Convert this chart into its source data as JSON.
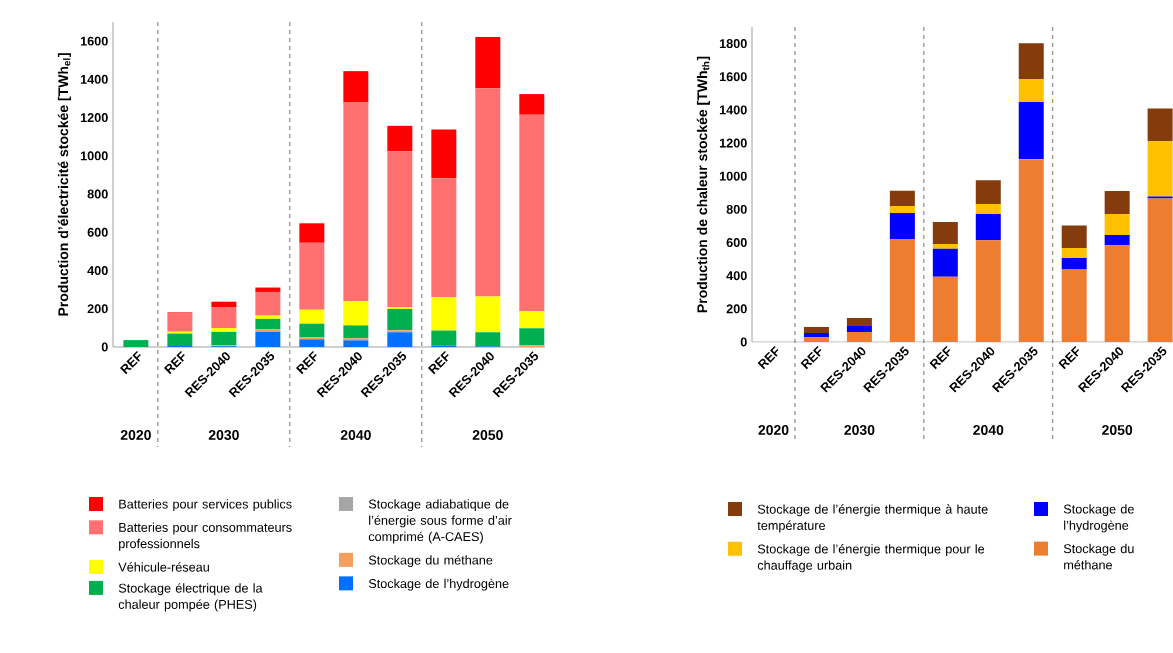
{
  "chart_data": [
    {
      "type": "bar",
      "stacked": true,
      "ylabel": "Production d’électricité stockée [TWh$_{el}$]",
      "categories": [
        "REF",
        "REF",
        "RES-2040",
        "RES-2035",
        "REF",
        "RES-2040",
        "RES-2035",
        "REF",
        "RES-2040",
        "RES-2035"
      ],
      "series": [
        {
          "name": "Stockage de l’hydrogène",
          "color": "#0070ff",
          "values": [
            0,
            5,
            4,
            79,
            40,
            35,
            77,
            8,
            3,
            0
          ]
        },
        {
          "name": "Stockage du méthane",
          "color": "#f4a05a",
          "values": [
            0,
            0,
            4,
            13,
            11,
            10,
            10,
            0,
            0,
            9
          ]
        },
        {
          "name": "Stockage adiabatique de l’énergie sous forme d’air comprimé (A-CAES)",
          "color": "#a6a6a6",
          "values": [
            null,
            0,
            0,
            0,
            0,
            0,
            0,
            0,
            0,
            0
          ]
        },
        {
          "name": "Stockage électrique de la chaleur pompée (PHES)",
          "color": "#00b050",
          "values": [
            36,
            65,
            71,
            55,
            71,
            68,
            112,
            78,
            74,
            89
          ]
        },
        {
          "name": "Véhicule-réseau",
          "color": "#ffff00",
          "values": [
            0,
            10,
            20,
            17,
            73,
            126,
            10,
            174,
            187,
            89
          ]
        },
        {
          "name": "Batteries pour consommateurs professionnels",
          "color": "#ff7171",
          "values": [
            0,
            95,
            110,
            124,
            350,
            1042,
            815,
            623,
            1089,
            1028
          ]
        },
        {
          "name": "Batteries pour services publics",
          "color": "#ff0000",
          "values": [
            0,
            6,
            28,
            23,
            102,
            162,
            133,
            255,
            268,
            108
          ]
        }
      ],
      "ylim": [
        0,
        1700
      ],
      "yticks": [
        0,
        200,
        400,
        600,
        800,
        1000,
        1200,
        1400,
        1600
      ],
      "annotations": [
        "2020",
        "2030",
        "2040",
        "2050"
      ],
      "legend": "bottom"
    },
    {
      "type": "bar",
      "stacked": true,
      "ylabel": "Production de chaleur stockée [TWh$_{th}$]",
      "categories": [
        "REF",
        "REF",
        "RES-2040",
        "RES-2035",
        "REF",
        "RES-2040",
        "RES-2035",
        "REF",
        "RES-2040",
        "RES-2035"
      ],
      "series": [
        {
          "name": "Stockage du méthane",
          "color": "#ed7d31",
          "values": [
            0,
            28,
            60,
            621,
            394,
            613,
            1102,
            438,
            583,
            865
          ]
        },
        {
          "name": "Stockage de l’hydrogène",
          "color": "#0000ff",
          "values": [
            0,
            26,
            37,
            157,
            169,
            159,
            346,
            69,
            63,
            12
          ]
        },
        {
          "name": "Stockage de l’énergie thermique pour le chauffage urbain",
          "color": "#ffc000",
          "values": [
            0,
            0,
            0,
            43,
            28,
            61,
            139,
            60,
            126,
            334
          ]
        },
        {
          "name": "Stockage de l’énergie thermique à haute température",
          "color": "#843c0c",
          "values": [
            0,
            37,
            48,
            92,
            133,
            142,
            215,
            135,
            139,
            197
          ]
        }
      ],
      "ylim": [
        0,
        1900
      ],
      "yticks": [
        0,
        200,
        400,
        600,
        800,
        1000,
        1200,
        1400,
        1600,
        1800
      ],
      "annotations": [
        "2020",
        "2030",
        "2040",
        "2050"
      ],
      "legend": "bottom"
    }
  ]
}
